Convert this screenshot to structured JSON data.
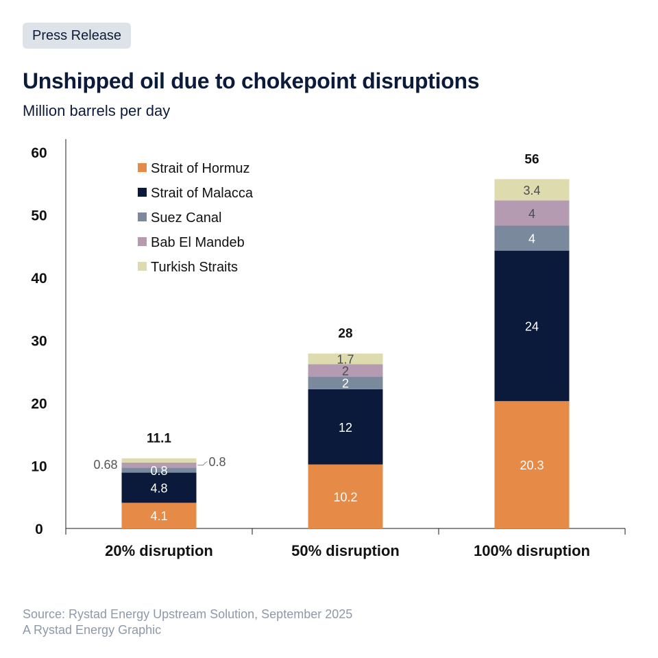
{
  "badge": "Press Release",
  "title": "Unshipped oil due to chokepoint disruptions",
  "subtitle": "Million barrels per day",
  "footer": {
    "source": "Source: Rystad Energy Upstream Solution, September 2025",
    "credit": "A Rystad Energy Graphic"
  },
  "chart_data": {
    "type": "bar",
    "stacked": true,
    "categories": [
      "20% disruption",
      "50% disruption",
      "100% disruption"
    ],
    "ylim": [
      0,
      60
    ],
    "yticks": [
      0,
      10,
      20,
      30,
      40,
      50,
      60
    ],
    "totals": [
      "11.1",
      "28",
      "56"
    ],
    "legend_position": "top-left",
    "series": [
      {
        "name": "Strait of Hormuz",
        "color": "#e68a48",
        "values": [
          4.1,
          10.2,
          20.3
        ],
        "labels": [
          "4.1",
          "10.2",
          "20.3"
        ]
      },
      {
        "name": "Strait of Malacca",
        "color": "#0b1a3a",
        "values": [
          4.8,
          12,
          24
        ],
        "labels": [
          "4.8",
          "12",
          "24"
        ]
      },
      {
        "name": "Suez Canal",
        "color": "#7a8a9c",
        "values": [
          0.8,
          2,
          4
        ],
        "labels": [
          "0.8",
          "2",
          "4"
        ]
      },
      {
        "name": "Bab El Mandeb",
        "color": "#b49bb2",
        "values": [
          0.8,
          2,
          4
        ],
        "labels": [
          "0.8",
          "2",
          "4"
        ]
      },
      {
        "name": "Turkish Straits",
        "color": "#dedcaf",
        "values": [
          0.68,
          1.7,
          3.4
        ],
        "labels": [
          "0.68",
          "1.7",
          "3.4"
        ]
      }
    ]
  }
}
